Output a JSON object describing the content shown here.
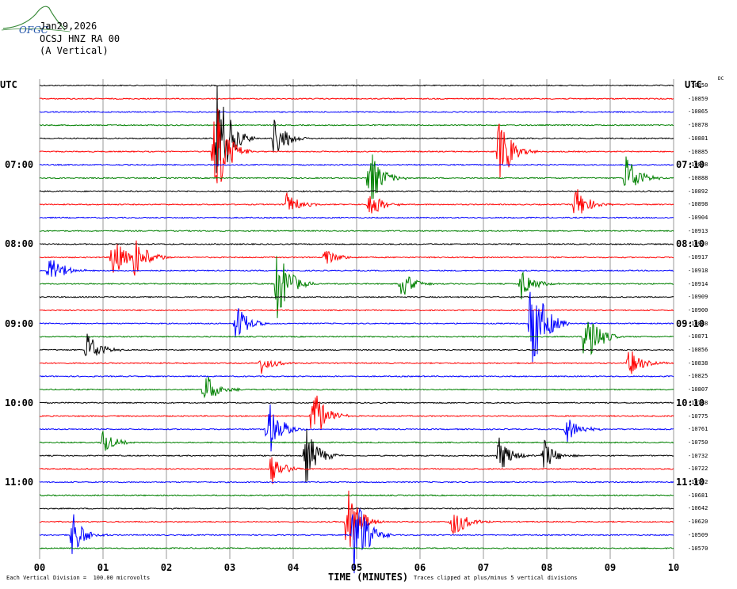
{
  "logo_text": "OFGC",
  "header": {
    "date": "Jan29,2026",
    "station": "OCSJ HNZ RA 00",
    "component": "(A Vertical)"
  },
  "utc_left": "UTC",
  "utc_right": "UTC",
  "dc_label": "DC",
  "colors": {
    "black": "#000000",
    "red": "#ff0000",
    "blue": "#0000ff",
    "green": "#008000",
    "grid": "#808080"
  },
  "chart_data": {
    "type": "line",
    "title": "",
    "xlabel": "TIME (MINUTES)",
    "xlim": [
      0,
      10
    ],
    "x_ticks": [
      "00",
      "01",
      "02",
      "03",
      "04",
      "05",
      "06",
      "07",
      "08",
      "09",
      "10"
    ],
    "traces_per_hour": 6,
    "trace_minutes": 10,
    "color_cycle": [
      "black",
      "red",
      "blue",
      "green"
    ],
    "left_time_labels": [
      {
        "trace": 6,
        "label": "07:00"
      },
      {
        "trace": 12,
        "label": "08:00"
      },
      {
        "trace": 18,
        "label": "09:00"
      },
      {
        "trace": 24,
        "label": "10:00"
      },
      {
        "trace": 30,
        "label": "11:00"
      }
    ],
    "right_time_labels": [
      {
        "trace": 6,
        "label": "07:10"
      },
      {
        "trace": 12,
        "label": "08:10"
      },
      {
        "trace": 18,
        "label": "09:10"
      },
      {
        "trace": 24,
        "label": "10:10"
      },
      {
        "trace": 30,
        "label": "11:10"
      }
    ],
    "dc_offsets": [
      "-10850",
      "-10859",
      "-10865",
      "-10878",
      "-10881",
      "-10885",
      "-10888",
      "-10888",
      "-10892",
      "-10898",
      "-10904",
      "-10913",
      "-10920",
      "-10917",
      "-10918",
      "-10914",
      "-10909",
      "-10900",
      "-10888",
      "-10871",
      "-10856",
      "-10838",
      "-10825",
      "-10807",
      "-10788",
      "-10775",
      "-10761",
      "-10750",
      "-10732",
      "-10722",
      "-10702",
      "-10681",
      "-10642",
      "-10620",
      "-10509",
      "-10570"
    ],
    "events": [
      {
        "trace": 5,
        "minute": 2.75,
        "amp": 5
      },
      {
        "trace": 4,
        "minute": 2.8,
        "amp": 5
      },
      {
        "trace": 4,
        "minute": 3.7,
        "amp": 1.8
      },
      {
        "trace": 5,
        "minute": 7.25,
        "amp": 3
      },
      {
        "trace": 7,
        "minute": 5.2,
        "amp": 2.5
      },
      {
        "trace": 7,
        "minute": 9.25,
        "amp": 2
      },
      {
        "trace": 9,
        "minute": 3.9,
        "amp": 1
      },
      {
        "trace": 9,
        "minute": 5.2,
        "amp": 1.2
      },
      {
        "trace": 9,
        "minute": 8.45,
        "amp": 1.5
      },
      {
        "trace": 13,
        "minute": 1.15,
        "amp": 1.8
      },
      {
        "trace": 13,
        "minute": 1.5,
        "amp": 2
      },
      {
        "trace": 13,
        "minute": 4.5,
        "amp": 0.8
      },
      {
        "trace": 14,
        "minute": 0.15,
        "amp": 1.5
      },
      {
        "trace": 15,
        "minute": 3.75,
        "amp": 3
      },
      {
        "trace": 15,
        "minute": 5.7,
        "amp": 1.2
      },
      {
        "trace": 15,
        "minute": 7.6,
        "amp": 1.3
      },
      {
        "trace": 18,
        "minute": 7.75,
        "amp": 5
      },
      {
        "trace": 18,
        "minute": 3.1,
        "amp": 1.5
      },
      {
        "trace": 19,
        "minute": 8.6,
        "amp": 3
      },
      {
        "trace": 20,
        "minute": 0.75,
        "amp": 1.5
      },
      {
        "trace": 21,
        "minute": 3.5,
        "amp": 0.8
      },
      {
        "trace": 21,
        "minute": 9.3,
        "amp": 1.2
      },
      {
        "trace": 23,
        "minute": 2.6,
        "amp": 1.4
      },
      {
        "trace": 25,
        "minute": 4.3,
        "amp": 2.5
      },
      {
        "trace": 26,
        "minute": 3.6,
        "amp": 2.5
      },
      {
        "trace": 26,
        "minute": 8.3,
        "amp": 1.2
      },
      {
        "trace": 27,
        "minute": 1.0,
        "amp": 0.9
      },
      {
        "trace": 28,
        "minute": 4.2,
        "amp": 2.2
      },
      {
        "trace": 28,
        "minute": 7.25,
        "amp": 1.5
      },
      {
        "trace": 28,
        "minute": 7.95,
        "amp": 1.3
      },
      {
        "trace": 29,
        "minute": 3.65,
        "amp": 1.4
      },
      {
        "trace": 33,
        "minute": 4.85,
        "amp": 3
      },
      {
        "trace": 33,
        "minute": 6.5,
        "amp": 1.6
      },
      {
        "trace": 34,
        "minute": 0.5,
        "amp": 2
      },
      {
        "trace": 34,
        "minute": 4.95,
        "amp": 4
      }
    ]
  },
  "footer": {
    "left": "Each Vertical Division =  100.00 microvolts",
    "center": "TIME (MINUTES)",
    "right": "Traces clipped at plus/minus 5 vertical divisions"
  }
}
